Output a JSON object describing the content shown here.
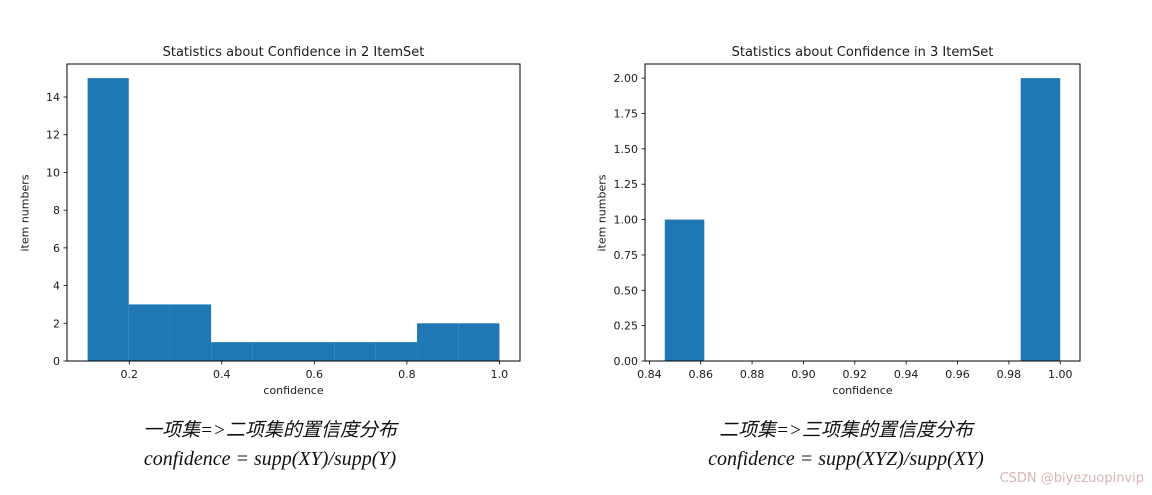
{
  "page": {
    "background": "#ffffff"
  },
  "watermark": {
    "text": "CSDN @biyezuopinvip",
    "color": "#d4b6b6"
  },
  "chart_data": [
    {
      "type": "bar",
      "title": "Statistics about Confidence in 2 ItemSet",
      "xlabel": "confidence",
      "ylabel": "item numbers",
      "bar_color": "#1f77b4",
      "grid": false,
      "legend": null,
      "bin_edges": [
        0.11,
        0.199,
        0.288,
        0.377,
        0.466,
        0.555,
        0.644,
        0.733,
        0.822,
        0.911,
        1.0
      ],
      "values": [
        15,
        3,
        3,
        1,
        1,
        1,
        1,
        1,
        2,
        2
      ],
      "xlim": [
        0.0655,
        1.0445
      ],
      "ylim": [
        0,
        15.75
      ],
      "xticks": [
        0.2,
        0.4,
        0.6,
        0.8,
        1.0
      ],
      "xtick_labels": [
        "0.2",
        "0.4",
        "0.6",
        "0.8",
        "1.0"
      ],
      "yticks": [
        0,
        2,
        4,
        6,
        8,
        10,
        12,
        14
      ],
      "ytick_labels": [
        "0",
        "2",
        "4",
        "6",
        "8",
        "10",
        "12",
        "14"
      ],
      "caption_line1": "一项集=>二项集的置信度分布",
      "caption_line2": "confidence = supp(XY)/supp(Y)"
    },
    {
      "type": "bar",
      "title": "Statistics about Confidence in 3 ItemSet",
      "xlabel": "confidence",
      "ylabel": "item numbers",
      "bar_color": "#1f77b4",
      "grid": false,
      "legend": null,
      "bin_edges": [
        0.846,
        0.8614,
        0.8768,
        0.8922,
        0.9076,
        0.923,
        0.9384,
        0.9538,
        0.9692,
        0.9846,
        1.0
      ],
      "values": [
        1,
        0,
        0,
        0,
        0,
        0,
        0,
        0,
        0,
        2
      ],
      "xlim": [
        0.8383,
        1.0077
      ],
      "ylim": [
        0,
        2.1
      ],
      "xticks": [
        0.84,
        0.86,
        0.88,
        0.9,
        0.92,
        0.94,
        0.96,
        0.98,
        1.0
      ],
      "xtick_labels": [
        "0.84",
        "0.86",
        "0.88",
        "0.90",
        "0.92",
        "0.94",
        "0.96",
        "0.98",
        "1.00"
      ],
      "yticks": [
        0,
        0.25,
        0.5,
        0.75,
        1.0,
        1.25,
        1.5,
        1.75,
        2.0
      ],
      "ytick_labels": [
        "0.00",
        "0.25",
        "0.50",
        "0.75",
        "1.00",
        "1.25",
        "1.50",
        "1.75",
        "2.00"
      ],
      "caption_line1": "二项集=>三项集的置信度分布",
      "caption_line2": "confidence = supp(XYZ)/supp(XY)"
    }
  ]
}
